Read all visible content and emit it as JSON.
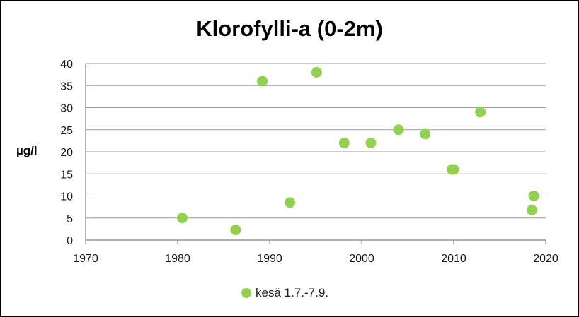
{
  "chart_data": {
    "type": "scatter",
    "title": "Klorofylli-a (0-2m)",
    "xlabel": "",
    "ylabel": "µg/l",
    "xlim": [
      1970,
      2020
    ],
    "ylim": [
      0,
      40
    ],
    "x_ticks": [
      1970,
      1980,
      1990,
      2000,
      2010,
      2020
    ],
    "y_ticks": [
      0,
      5,
      10,
      15,
      20,
      25,
      30,
      35,
      40
    ],
    "grid": "horizontal",
    "legend": "bottom",
    "marker_color": "#92D050",
    "series": [
      {
        "name": "kesä 1.7.-7.9.",
        "points": [
          {
            "x": 1980.5,
            "y": 5
          },
          {
            "x": 1986.3,
            "y": 2.3
          },
          {
            "x": 1989.2,
            "y": 36
          },
          {
            "x": 1992.2,
            "y": 8.5
          },
          {
            "x": 1995.1,
            "y": 38
          },
          {
            "x": 1998.1,
            "y": 22
          },
          {
            "x": 2001.0,
            "y": 22
          },
          {
            "x": 2004.0,
            "y": 25
          },
          {
            "x": 2006.9,
            "y": 24
          },
          {
            "x": 2009.8,
            "y": 16
          },
          {
            "x": 2010.0,
            "y": 16
          },
          {
            "x": 2012.9,
            "y": 29
          },
          {
            "x": 2018.5,
            "y": 6.8
          },
          {
            "x": 2018.7,
            "y": 10
          }
        ]
      }
    ]
  }
}
